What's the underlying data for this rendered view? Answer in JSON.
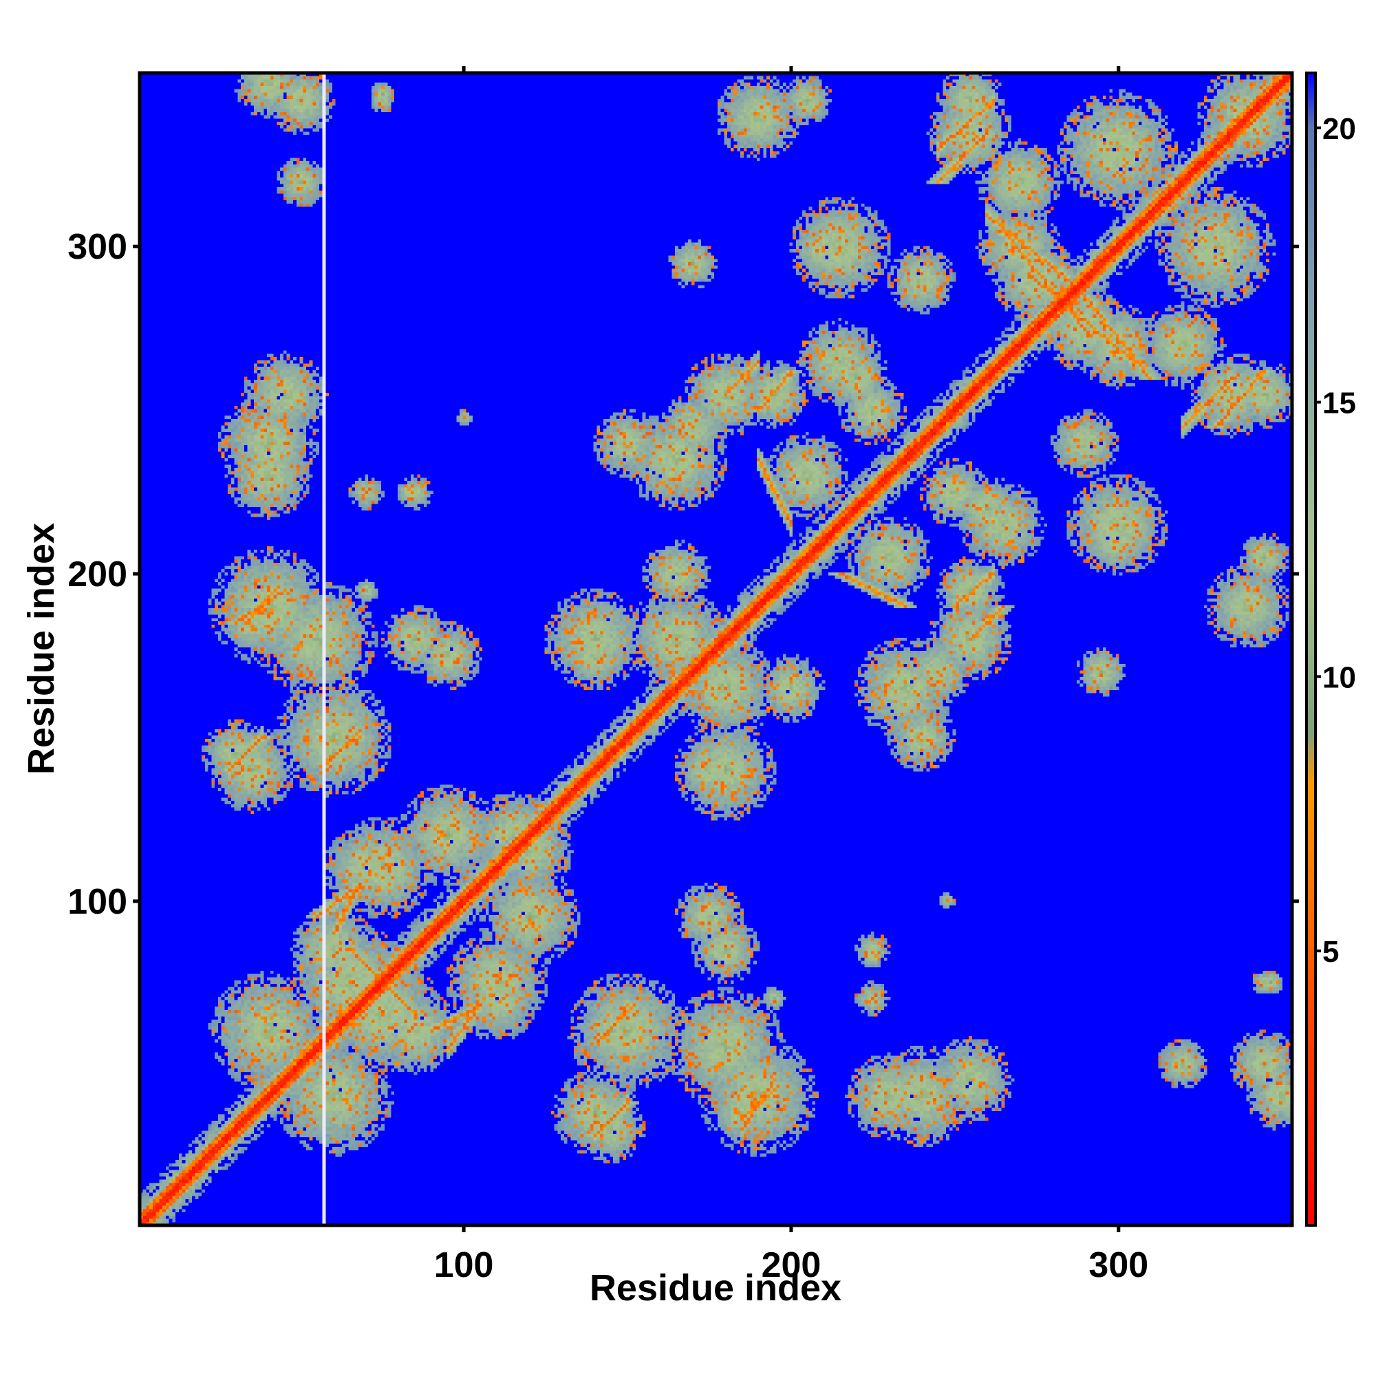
{
  "chart_data": {
    "type": "heatmap",
    "title": "",
    "xlabel": "Residue index",
    "ylabel": "Residue index",
    "n_residues": 353,
    "xlim": [
      1,
      353
    ],
    "ylim": [
      1,
      353
    ],
    "x_ticks": [
      100,
      200,
      300
    ],
    "y_ticks": [
      100,
      200,
      300
    ],
    "colorbar": {
      "range": [
        0,
        21
      ],
      "ticks": [
        5,
        10,
        15,
        20
      ],
      "stops": [
        {
          "value": 0,
          "color": "#ff0000"
        },
        {
          "value": 4,
          "color": "#ff4a00"
        },
        {
          "value": 8,
          "color": "#ff9900"
        },
        {
          "value": 9,
          "color": "#7fa07a"
        },
        {
          "value": 12,
          "color": "#a9c48c"
        },
        {
          "value": 17,
          "color": "#7f9fb0"
        },
        {
          "value": 20,
          "color": "#5a78b0"
        },
        {
          "value": 21,
          "color": "#0000ff"
        }
      ]
    },
    "background_value": 21,
    "background_color": "#0000ff",
    "contact_clusters": [
      {
        "x": 40,
        "y": 350,
        "r": 8
      },
      {
        "x": 75,
        "y": 347,
        "r": 3
      },
      {
        "x": 205,
        "y": 345,
        "r": 6
      },
      {
        "x": 255,
        "y": 335,
        "r": 10
      },
      {
        "x": 300,
        "y": 330,
        "r": 14
      },
      {
        "x": 340,
        "y": 340,
        "r": 12
      },
      {
        "x": 270,
        "y": 300,
        "r": 10
      },
      {
        "x": 290,
        "y": 275,
        "r": 10
      },
      {
        "x": 320,
        "y": 270,
        "r": 10
      },
      {
        "x": 345,
        "y": 255,
        "r": 8
      },
      {
        "x": 240,
        "y": 290,
        "r": 8
      },
      {
        "x": 210,
        "y": 300,
        "r": 8
      },
      {
        "x": 220,
        "y": 260,
        "r": 8
      },
      {
        "x": 195,
        "y": 255,
        "r": 8
      },
      {
        "x": 170,
        "y": 245,
        "r": 8
      },
      {
        "x": 150,
        "y": 240,
        "r": 8
      },
      {
        "x": 40,
        "y": 240,
        "r": 12
      },
      {
        "x": 70,
        "y": 225,
        "r": 4
      },
      {
        "x": 83,
        "y": 225,
        "r": 3
      },
      {
        "x": 40,
        "y": 190,
        "r": 14
      },
      {
        "x": 35,
        "y": 140,
        "r": 10
      },
      {
        "x": 60,
        "y": 145,
        "r": 8
      },
      {
        "x": 70,
        "y": 110,
        "r": 10
      },
      {
        "x": 95,
        "y": 175,
        "r": 8
      },
      {
        "x": 140,
        "y": 180,
        "r": 12
      },
      {
        "x": 180,
        "y": 165,
        "r": 12
      },
      {
        "x": 200,
        "y": 165,
        "r": 8
      },
      {
        "x": 175,
        "y": 140,
        "r": 8
      },
      {
        "x": 235,
        "y": 165,
        "r": 12
      },
      {
        "x": 255,
        "y": 180,
        "r": 10
      },
      {
        "x": 265,
        "y": 215,
        "r": 10
      },
      {
        "x": 300,
        "y": 215,
        "r": 12
      },
      {
        "x": 340,
        "y": 190,
        "r": 10
      },
      {
        "x": 295,
        "y": 170,
        "r": 6
      },
      {
        "x": 250,
        "y": 225,
        "r": 8
      },
      {
        "x": 230,
        "y": 205,
        "r": 10
      },
      {
        "x": 95,
        "y": 120,
        "r": 12
      },
      {
        "x": 120,
        "y": 115,
        "r": 10
      },
      {
        "x": 110,
        "y": 75,
        "r": 12
      },
      {
        "x": 150,
        "y": 60,
        "r": 14
      },
      {
        "x": 180,
        "y": 55,
        "r": 14
      },
      {
        "x": 180,
        "y": 85,
        "r": 8
      },
      {
        "x": 145,
        "y": 30,
        "r": 8
      },
      {
        "x": 185,
        "y": 35,
        "r": 8
      },
      {
        "x": 230,
        "y": 40,
        "r": 10
      },
      {
        "x": 255,
        "y": 45,
        "r": 10
      },
      {
        "x": 40,
        "y": 60,
        "r": 14
      },
      {
        "x": 75,
        "y": 65,
        "r": 14
      },
      {
        "x": 60,
        "y": 85,
        "r": 10
      },
      {
        "x": 225,
        "y": 85,
        "r": 4
      },
      {
        "x": 225,
        "y": 70,
        "r": 4
      },
      {
        "x": 345,
        "y": 75,
        "r": 3
      },
      {
        "x": 345,
        "y": 50,
        "r": 8
      },
      {
        "x": 320,
        "y": 50,
        "r": 6
      },
      {
        "x": 195,
        "y": 70,
        "r": 3
      },
      {
        "x": 248,
        "y": 100,
        "r": 2
      }
    ],
    "contact_lines": [
      {
        "x1": 265,
        "y1": 305,
        "x2": 290,
        "y2": 275
      },
      {
        "x1": 290,
        "y1": 285,
        "x2": 310,
        "y2": 260
      },
      {
        "x1": 190,
        "y1": 250,
        "x2": 200,
        "y2": 262
      },
      {
        "x1": 30,
        "y1": 185,
        "x2": 45,
        "y2": 195
      },
      {
        "x1": 28,
        "y1": 140,
        "x2": 38,
        "y2": 150
      },
      {
        "x1": 58,
        "y1": 143,
        "x2": 68,
        "y2": 150
      },
      {
        "x1": 70,
        "y1": 80,
        "x2": 85,
        "y2": 65
      },
      {
        "x1": 142,
        "y1": 58,
        "x2": 152,
        "y2": 68
      },
      {
        "x1": 140,
        "y1": 28,
        "x2": 150,
        "y2": 38
      },
      {
        "x1": 185,
        "y1": 33,
        "x2": 195,
        "y2": 42
      },
      {
        "x1": 90,
        "y1": 60,
        "x2": 105,
        "y2": 68
      },
      {
        "x1": 55,
        "y1": 95,
        "x2": 68,
        "y2": 105
      },
      {
        "x1": 330,
        "y1": 245,
        "x2": 345,
        "y2": 262
      },
      {
        "x1": 255,
        "y1": 180,
        "x2": 265,
        "y2": 190
      },
      {
        "x1": 215,
        "y1": 200,
        "x2": 235,
        "y2": 190
      },
      {
        "x1": 245,
        "y1": 320,
        "x2": 260,
        "y2": 335
      }
    ],
    "gap_column": 57
  }
}
